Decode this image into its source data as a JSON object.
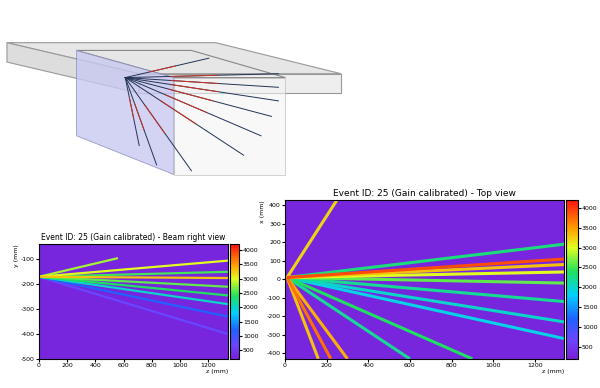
{
  "chart_data": [
    {
      "type": "heatmap",
      "title": "Event ID: 25 (Gain calibrated) - Beam right view",
      "x_label": "z (mm)",
      "y_label": "y (mm)",
      "xlim": [
        0,
        1340
      ],
      "ylim": [
        -500,
        -40
      ],
      "xticks": [
        0,
        200,
        400,
        600,
        800,
        1000,
        1200
      ],
      "yticks": [
        -500,
        -400,
        -300,
        -200,
        -100
      ],
      "background": 300,
      "colorbar_range": [
        200,
        4200
      ],
      "colorbar_ticks": [
        500,
        1000,
        1500,
        2000,
        2500,
        3000,
        3500,
        4000
      ],
      "tracks": [
        {
          "x": [
            0,
            560
          ],
          "y": [
            -170,
            -95
          ],
          "value": 2800
        },
        {
          "x": [
            0,
            1340
          ],
          "y": [
            -170,
            -105
          ],
          "value": 3000
        },
        {
          "x": [
            0,
            1340
          ],
          "y": [
            -170,
            -150
          ],
          "value": 2500
        },
        {
          "x": [
            0,
            1340
          ],
          "y": [
            -170,
            -175
          ],
          "value": 3300
        },
        {
          "x": [
            0,
            1340
          ],
          "y": [
            -170,
            -210
          ],
          "value": 2600
        },
        {
          "x": [
            0,
            1340
          ],
          "y": [
            -170,
            -245
          ],
          "value": 2400
        },
        {
          "x": [
            0,
            1340
          ],
          "y": [
            -170,
            -280
          ],
          "value": 2000
        },
        {
          "x": [
            0,
            1340
          ],
          "y": [
            -170,
            -330
          ],
          "value": 1200
        },
        {
          "x": [
            0,
            1340
          ],
          "y": [
            -170,
            -400
          ],
          "value": 700
        }
      ]
    },
    {
      "type": "heatmap",
      "title": "Event ID: 25 (Gain calibrated) - Top view",
      "x_label": "z (mm)",
      "y_label": "x (mm)",
      "xlim": [
        0,
        1340
      ],
      "ylim": [
        -430,
        430
      ],
      "xticks": [
        0,
        200,
        400,
        600,
        800,
        1000,
        1200
      ],
      "yticks": [
        -400,
        -300,
        -200,
        -100,
        0,
        100,
        200,
        300,
        400
      ],
      "background": 300,
      "colorbar_range": [
        200,
        4200
      ],
      "colorbar_ticks": [
        500,
        1000,
        1500,
        2000,
        2500,
        3000,
        3500,
        4000
      ],
      "tracks": [
        {
          "x": [
            10,
            250
          ],
          "y": [
            10,
            430
          ],
          "value": 3200
        },
        {
          "x": [
            10,
            1340
          ],
          "y": [
            10,
            190
          ],
          "value": 2300
        },
        {
          "x": [
            10,
            1340
          ],
          "y": [
            10,
            110
          ],
          "value": 3900
        },
        {
          "x": [
            10,
            1340
          ],
          "y": [
            10,
            80
          ],
          "value": 3300
        },
        {
          "x": [
            10,
            1340
          ],
          "y": [
            10,
            40
          ],
          "value": 3000
        },
        {
          "x": [
            10,
            1340
          ],
          "y": [
            10,
            -20
          ],
          "value": 2600
        },
        {
          "x": [
            10,
            1340
          ],
          "y": [
            10,
            -120
          ],
          "value": 2200
        },
        {
          "x": [
            10,
            1340
          ],
          "y": [
            10,
            -230
          ],
          "value": 2000
        },
        {
          "x": [
            10,
            1340
          ],
          "y": [
            10,
            -320
          ],
          "value": 1900
        },
        {
          "x": [
            10,
            900
          ],
          "y": [
            10,
            -430
          ],
          "value": 2400
        },
        {
          "x": [
            10,
            600
          ],
          "y": [
            10,
            -430
          ],
          "value": 2200
        },
        {
          "x": [
            10,
            300
          ],
          "y": [
            10,
            -430
          ],
          "value": 3400
        },
        {
          "x": [
            10,
            220
          ],
          "y": [
            10,
            -430
          ],
          "value": 3700
        },
        {
          "x": [
            10,
            160
          ],
          "y": [
            10,
            -430
          ],
          "value": 3300
        }
      ]
    }
  ]
}
